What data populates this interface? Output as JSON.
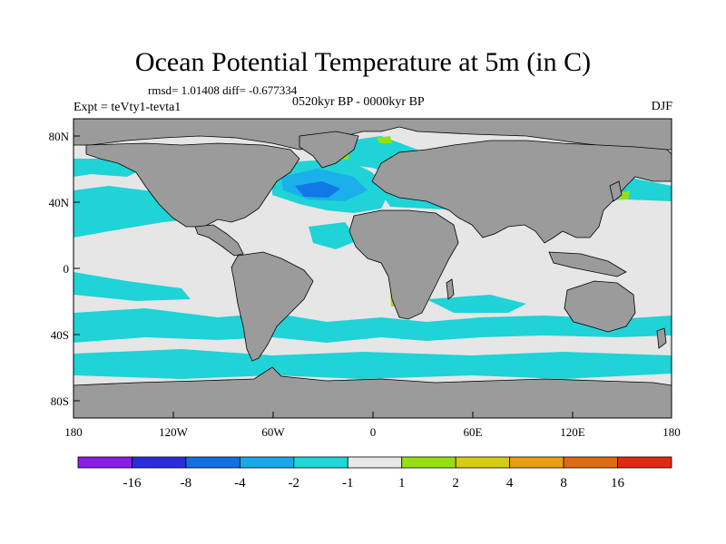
{
  "title": "Ocean Potential Temperature at 5m (in C)",
  "stats": "rmsd= 1.01408 diff= -0.677334",
  "period": "0520kyr BP - 0000kyr BP",
  "experiment": "Expt = teVty1-tevta1",
  "season": "DJF",
  "map": {
    "projection": "cylindrical equidistant",
    "lat_range": [
      -90,
      90
    ],
    "lon_range": [
      -180,
      180
    ],
    "lat_ticks": [
      "80N",
      "40N",
      "0",
      "40S",
      "80S"
    ],
    "lon_ticks": [
      "180",
      "120W",
      "60W",
      "0",
      "60E",
      "120E",
      "180"
    ],
    "colors": {
      "land": "#9b9b9b",
      "near_zero": "#e6e6e6",
      "cool_-2_-1": "#1fd3d6",
      "cool_-4_-2": "#1ab0ea",
      "cool_-8_-4": "#1278e6",
      "warm_1_2": "#96e012"
    }
  },
  "colorbar": {
    "levels": [
      "-16",
      "-8",
      "-4",
      "-2",
      "-1",
      "1",
      "2",
      "4",
      "8",
      "16"
    ],
    "colors": [
      "#8a1ee6",
      "#2b2be0",
      "#1470e0",
      "#18a8e8",
      "#1ed8d8",
      "#e8e8e8",
      "#96e012",
      "#d8cc12",
      "#e8a010",
      "#e06a10",
      "#e02a10"
    ]
  }
}
